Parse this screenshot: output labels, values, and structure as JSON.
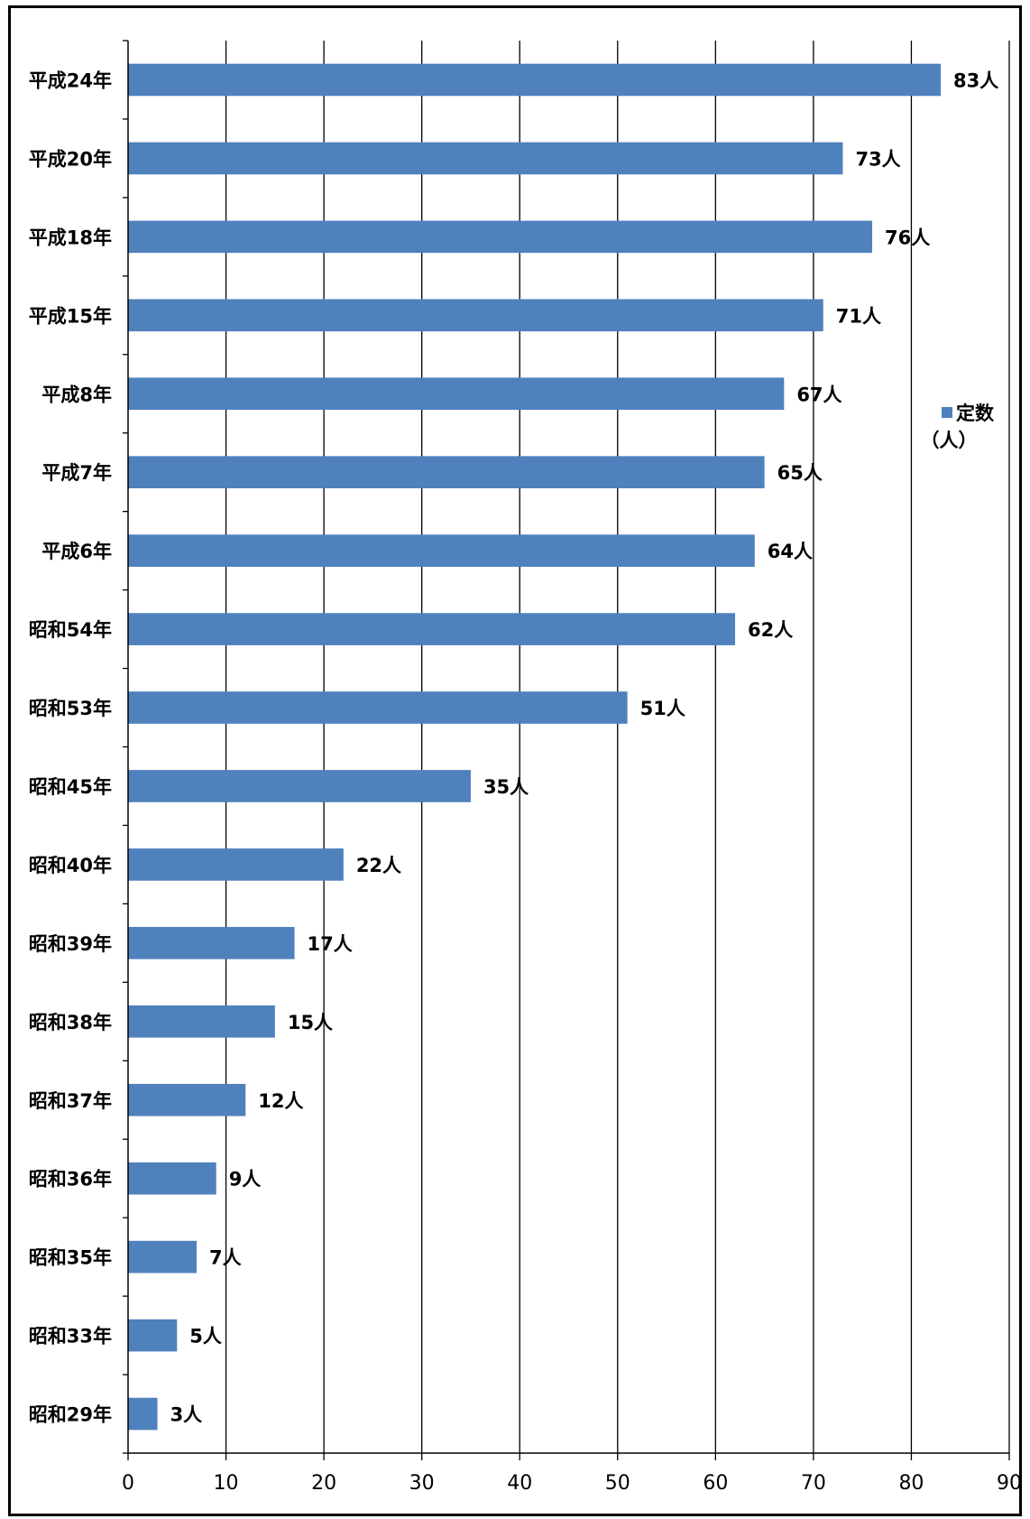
{
  "chart_data": {
    "type": "bar",
    "orientation": "horizontal",
    "categories": [
      "平成24年",
      "平成20年",
      "平成18年",
      "平成15年",
      "平成8年",
      "平成7年",
      "平成6年",
      "昭和54年",
      "昭和53年",
      "昭和45年",
      "昭和40年",
      "昭和39年",
      "昭和38年",
      "昭和37年",
      "昭和36年",
      "昭和35年",
      "昭和33年",
      "昭和29年"
    ],
    "series": [
      {
        "name": "定数",
        "values": [
          83,
          73,
          76,
          71,
          67,
          65,
          64,
          62,
          51,
          35,
          22,
          17,
          15,
          12,
          9,
          7,
          5,
          3
        ],
        "labels": [
          "83人",
          "73人",
          "76人",
          "71人",
          "67人",
          "65人",
          "64人",
          "62人",
          "51人",
          "35人",
          "22人",
          "17人",
          "15人",
          "12人",
          "9人",
          "7人",
          "5人",
          "3人"
        ]
      }
    ],
    "legend": {
      "name": "定数",
      "unit": "（人）",
      "position": "right"
    },
    "xlim": [
      0,
      90
    ],
    "xticks": [
      0,
      10,
      20,
      30,
      40,
      50,
      60,
      70,
      80,
      90
    ],
    "grid": "vertical",
    "title": "",
    "xlabel": "",
    "ylabel": "",
    "colors": {
      "bar": "#4F81BD",
      "grid": "#000000",
      "axis": "#000000"
    }
  }
}
